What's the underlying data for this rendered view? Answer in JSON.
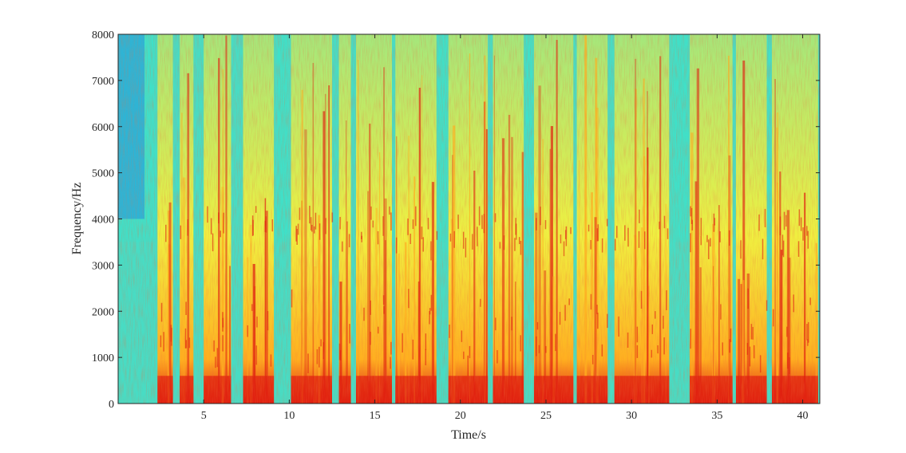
{
  "chart_data": {
    "type": "heatmap",
    "title": "",
    "xlabel": "Time/s",
    "ylabel": "Frequency/Hz",
    "xlim": [
      0,
      41
    ],
    "ylim": [
      0,
      8000
    ],
    "x_ticks": [
      5,
      10,
      15,
      20,
      25,
      30,
      35,
      40
    ],
    "y_ticks": [
      0,
      1000,
      2000,
      3000,
      4000,
      5000,
      6000,
      7000,
      8000
    ],
    "grid": false,
    "colormap": "jet",
    "colors": {
      "low": "#1f8fe0",
      "mid_low": "#40e0c8",
      "mid": "#f0f040",
      "mid_high": "#ffb020",
      "high": "#e02010"
    },
    "high_energy_time_bands": [
      [
        2.3,
        3.2
      ],
      [
        3.6,
        4.4
      ],
      [
        5.0,
        6.6
      ],
      [
        7.3,
        9.1
      ],
      [
        10.1,
        12.5
      ],
      [
        12.9,
        13.6
      ],
      [
        13.9,
        16.0
      ],
      [
        16.2,
        18.6
      ],
      [
        19.3,
        21.6
      ],
      [
        21.9,
        23.7
      ],
      [
        24.3,
        26.6
      ],
      [
        26.8,
        28.6
      ],
      [
        29.0,
        32.2
      ],
      [
        33.4,
        35.9
      ],
      [
        36.1,
        37.9
      ],
      [
        38.2,
        40.9
      ]
    ],
    "quiet_time_bands": [
      [
        0.0,
        2.2
      ],
      [
        9.3,
        9.9
      ],
      [
        18.7,
        19.2
      ],
      [
        23.8,
        24.2
      ],
      [
        32.4,
        33.3
      ],
      [
        38.0,
        38.1
      ]
    ],
    "low_frequency_band_hz": [
      0,
      600
    ]
  }
}
